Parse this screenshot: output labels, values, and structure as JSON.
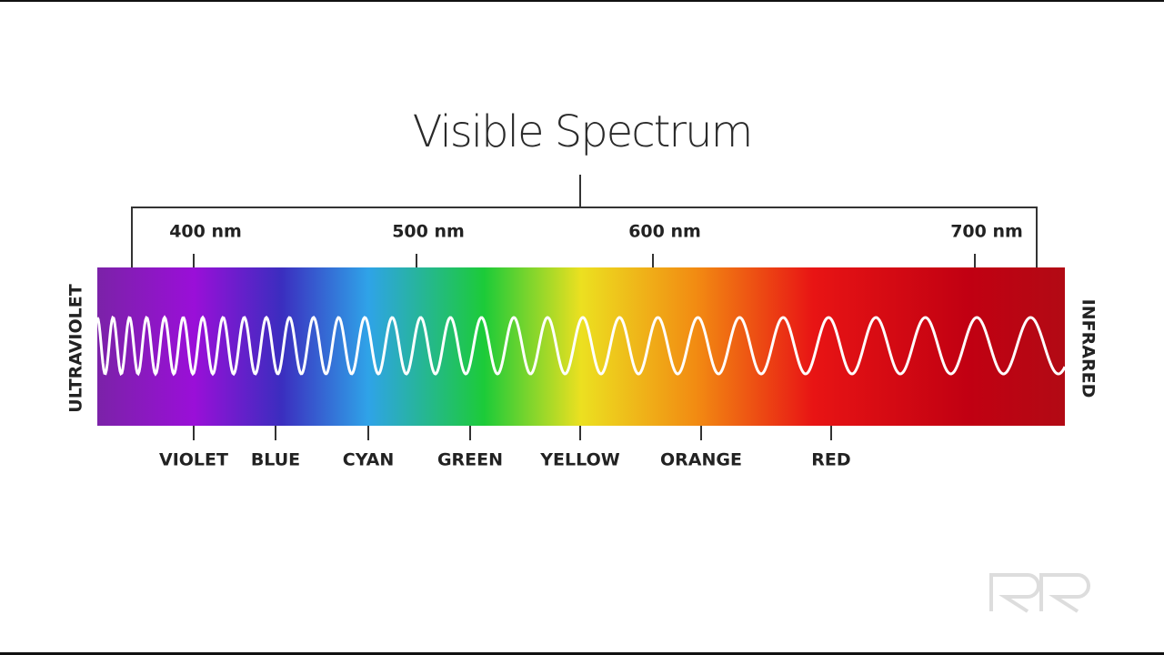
{
  "title": "Visible Spectrum",
  "wavelengths": [
    "400 nm",
    "500 nm",
    "600 nm",
    "700 nm"
  ],
  "colors": [
    "VIOLET",
    "BLUE",
    "CYAN",
    "GREEN",
    "YELLOW",
    "ORANGE",
    "RED"
  ],
  "left_label": "ULTRAVIOLET",
  "right_label": "INFRARED"
}
